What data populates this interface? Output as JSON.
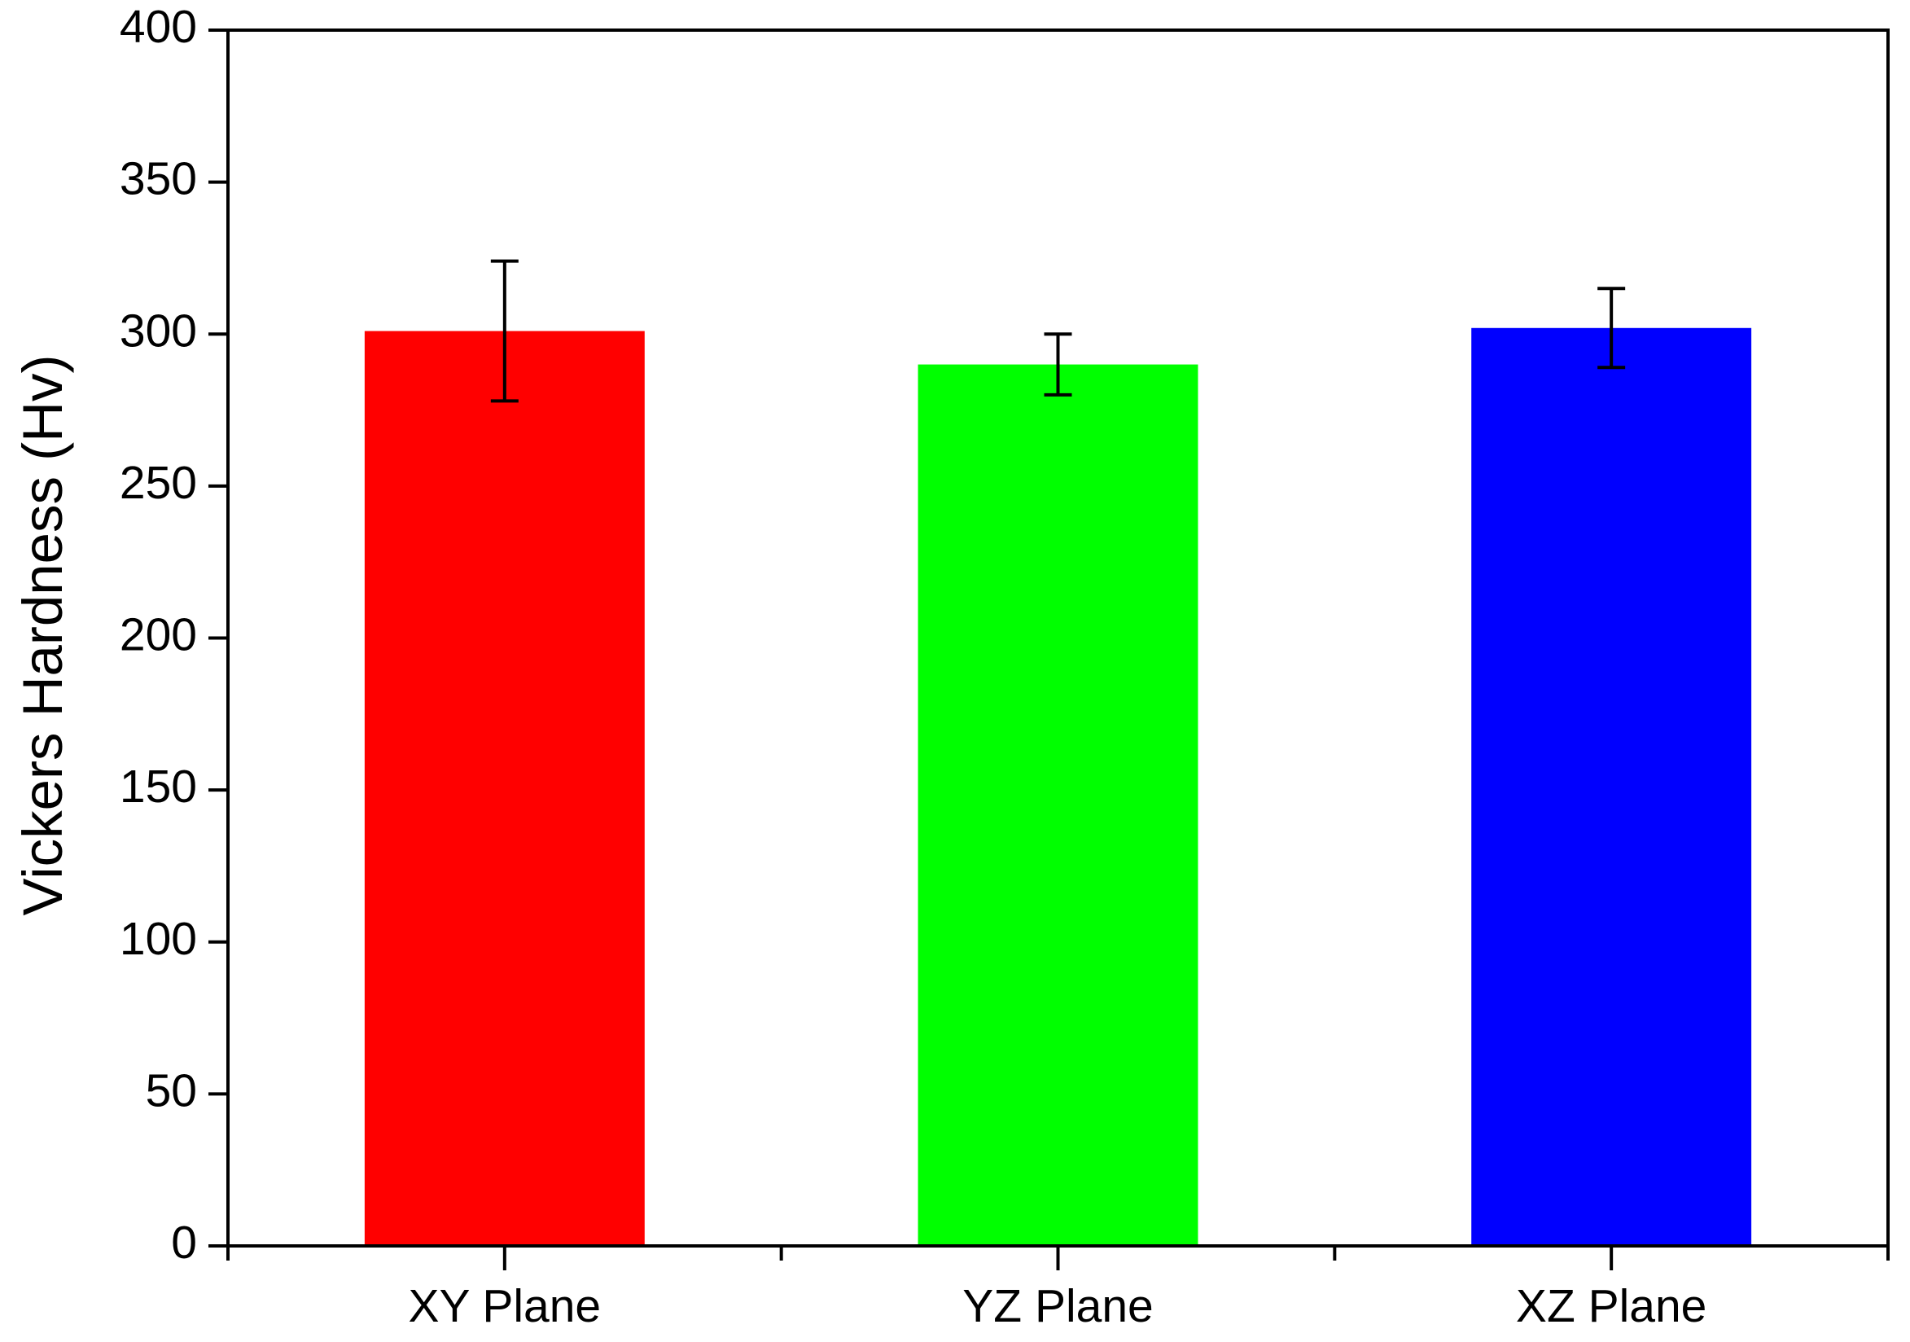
{
  "chart_data": {
    "type": "bar",
    "y_label": "Vickers Hardness (Hv)",
    "categories": [
      "XY Plane",
      "YZ Plane",
      "XZ Plane"
    ],
    "values": [
      301,
      290,
      302
    ],
    "errors": [
      23,
      10,
      13
    ],
    "colors": [
      "#ff0000",
      "#00ff00",
      "#0000ff"
    ],
    "ylim": [
      0,
      400
    ],
    "yticks": [
      0,
      50,
      100,
      150,
      200,
      250,
      300,
      350,
      400
    ],
    "grid": false
  }
}
